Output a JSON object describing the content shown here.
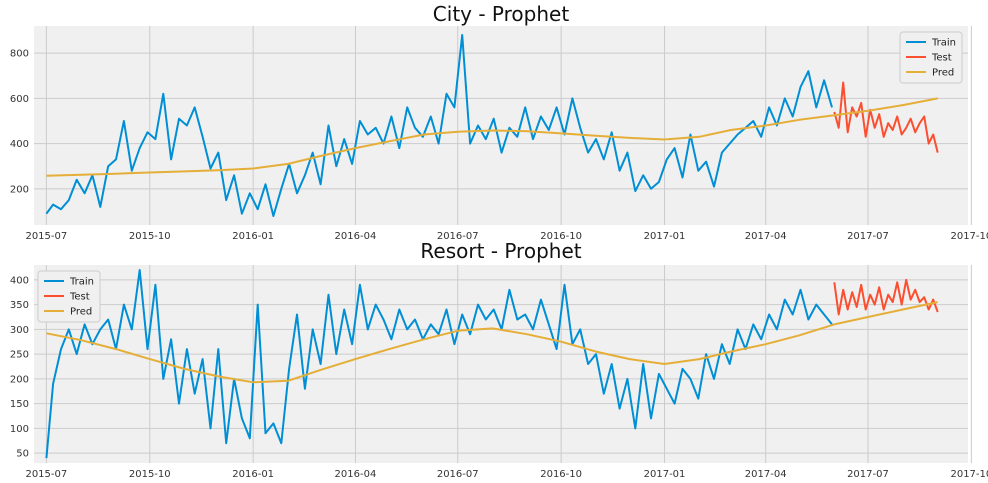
{
  "chart_data": [
    {
      "type": "line",
      "title": "City - Prophet",
      "xlabel": "",
      "ylabel": "",
      "xlim": [
        "2015-06-20",
        "2017-09-28"
      ],
      "ylim": [
        40,
        920
      ],
      "x_ticks": [
        "2015-07",
        "2015-10",
        "2016-01",
        "2016-04",
        "2016-07",
        "2016-10",
        "2017-01",
        "2017-04",
        "2017-07",
        "2017-10"
      ],
      "y_ticks": [
        200,
        400,
        600,
        800
      ],
      "grid": true,
      "legend": "top-right",
      "series": [
        {
          "name": "Train",
          "color": "#008fd5",
          "x": [
            "2015-07-01",
            "2015-07-07",
            "2015-07-14",
            "2015-07-21",
            "2015-07-28",
            "2015-08-04",
            "2015-08-11",
            "2015-08-18",
            "2015-08-25",
            "2015-09-01",
            "2015-09-08",
            "2015-09-15",
            "2015-09-22",
            "2015-09-29",
            "2015-10-06",
            "2015-10-13",
            "2015-10-20",
            "2015-10-27",
            "2015-11-03",
            "2015-11-10",
            "2015-11-17",
            "2015-11-24",
            "2015-12-01",
            "2015-12-08",
            "2015-12-15",
            "2015-12-22",
            "2015-12-29",
            "2016-01-05",
            "2016-01-12",
            "2016-01-19",
            "2016-01-26",
            "2016-02-02",
            "2016-02-09",
            "2016-02-16",
            "2016-02-23",
            "2016-03-01",
            "2016-03-08",
            "2016-03-15",
            "2016-03-22",
            "2016-03-29",
            "2016-04-05",
            "2016-04-12",
            "2016-04-19",
            "2016-04-26",
            "2016-05-03",
            "2016-05-10",
            "2016-05-17",
            "2016-05-24",
            "2016-05-31",
            "2016-06-07",
            "2016-06-14",
            "2016-06-21",
            "2016-06-28",
            "2016-07-05",
            "2016-07-12",
            "2016-07-19",
            "2016-07-26",
            "2016-08-02",
            "2016-08-09",
            "2016-08-16",
            "2016-08-23",
            "2016-08-30",
            "2016-09-06",
            "2016-09-13",
            "2016-09-20",
            "2016-09-27",
            "2016-10-04",
            "2016-10-11",
            "2016-10-18",
            "2016-10-25",
            "2016-11-01",
            "2016-11-08",
            "2016-11-15",
            "2016-11-22",
            "2016-11-29",
            "2016-12-06",
            "2016-12-13",
            "2016-12-20",
            "2016-12-27",
            "2017-01-03",
            "2017-01-10",
            "2017-01-17",
            "2017-01-24",
            "2017-01-31",
            "2017-02-07",
            "2017-02-14",
            "2017-02-21",
            "2017-02-28",
            "2017-03-07",
            "2017-03-14",
            "2017-03-21",
            "2017-03-28",
            "2017-04-04",
            "2017-04-11",
            "2017-04-18",
            "2017-04-25",
            "2017-05-02",
            "2017-05-09",
            "2017-05-16",
            "2017-05-23",
            "2017-05-30"
          ],
          "values": [
            90,
            130,
            110,
            150,
            240,
            180,
            260,
            120,
            300,
            330,
            500,
            280,
            380,
            450,
            420,
            620,
            330,
            510,
            480,
            560,
            430,
            290,
            360,
            150,
            260,
            90,
            180,
            110,
            220,
            80,
            200,
            310,
            180,
            260,
            360,
            220,
            480,
            300,
            420,
            310,
            500,
            440,
            470,
            400,
            520,
            380,
            560,
            470,
            430,
            520,
            400,
            620,
            560,
            880,
            400,
            480,
            420,
            510,
            360,
            470,
            430,
            560,
            420,
            520,
            460,
            560,
            440,
            600,
            470,
            360,
            420,
            330,
            450,
            280,
            360,
            190,
            260,
            200,
            230,
            330,
            380,
            250,
            440,
            280,
            320,
            210,
            360,
            400,
            440,
            470,
            500,
            430,
            560,
            480,
            600,
            520,
            650,
            720,
            560,
            680,
            560
          ]
        },
        {
          "name": "Test",
          "color": "#fc4f30",
          "x": [
            "2017-06-01",
            "2017-06-05",
            "2017-06-09",
            "2017-06-13",
            "2017-06-17",
            "2017-06-21",
            "2017-06-25",
            "2017-06-29",
            "2017-07-03",
            "2017-07-07",
            "2017-07-11",
            "2017-07-15",
            "2017-07-19",
            "2017-07-23",
            "2017-07-27",
            "2017-07-31",
            "2017-08-04",
            "2017-08-08",
            "2017-08-12",
            "2017-08-16",
            "2017-08-20",
            "2017-08-24",
            "2017-08-28",
            "2017-09-01"
          ],
          "values": [
            540,
            470,
            670,
            450,
            560,
            520,
            580,
            430,
            550,
            470,
            530,
            430,
            490,
            460,
            520,
            440,
            470,
            510,
            450,
            490,
            520,
            400,
            440,
            360
          ]
        },
        {
          "name": "Pred",
          "color": "#e5ae38",
          "x": [
            "2015-07-01",
            "2015-08-01",
            "2015-09-01",
            "2015-10-01",
            "2015-11-01",
            "2015-12-01",
            "2016-01-01",
            "2016-02-01",
            "2016-03-01",
            "2016-04-01",
            "2016-05-01",
            "2016-06-01",
            "2016-07-01",
            "2016-08-01",
            "2016-09-01",
            "2016-10-01",
            "2016-11-01",
            "2016-12-01",
            "2017-01-01",
            "2017-02-01",
            "2017-03-01",
            "2017-04-01",
            "2017-05-01",
            "2017-06-01",
            "2017-07-01",
            "2017-08-01",
            "2017-09-01"
          ],
          "values": [
            258,
            262,
            267,
            272,
            277,
            282,
            290,
            310,
            345,
            380,
            410,
            440,
            452,
            458,
            455,
            445,
            435,
            425,
            418,
            430,
            460,
            480,
            505,
            525,
            545,
            570,
            600
          ]
        }
      ]
    },
    {
      "type": "line",
      "title": "Resort - Prophet",
      "xlabel": "",
      "ylabel": "",
      "xlim": [
        "2015-06-20",
        "2017-09-28"
      ],
      "ylim": [
        30,
        430
      ],
      "x_ticks": [
        "2015-07",
        "2015-10",
        "2016-01",
        "2016-04",
        "2016-07",
        "2016-10",
        "2017-01",
        "2017-04",
        "2017-07",
        "2017-10"
      ],
      "y_ticks": [
        50,
        100,
        150,
        200,
        250,
        300,
        350,
        400
      ],
      "grid": true,
      "legend": "top-left",
      "series": [
        {
          "name": "Train",
          "color": "#008fd5",
          "x": [
            "2015-07-01",
            "2015-07-07",
            "2015-07-14",
            "2015-07-21",
            "2015-07-28",
            "2015-08-04",
            "2015-08-11",
            "2015-08-18",
            "2015-08-25",
            "2015-09-01",
            "2015-09-08",
            "2015-09-15",
            "2015-09-22",
            "2015-09-29",
            "2015-10-06",
            "2015-10-13",
            "2015-10-20",
            "2015-10-27",
            "2015-11-03",
            "2015-11-10",
            "2015-11-17",
            "2015-11-24",
            "2015-12-01",
            "2015-12-08",
            "2015-12-15",
            "2015-12-22",
            "2015-12-29",
            "2016-01-05",
            "2016-01-12",
            "2016-01-19",
            "2016-01-26",
            "2016-02-02",
            "2016-02-09",
            "2016-02-16",
            "2016-02-23",
            "2016-03-01",
            "2016-03-08",
            "2016-03-15",
            "2016-03-22",
            "2016-03-29",
            "2016-04-05",
            "2016-04-12",
            "2016-04-19",
            "2016-04-26",
            "2016-05-03",
            "2016-05-10",
            "2016-05-17",
            "2016-05-24",
            "2016-05-31",
            "2016-06-07",
            "2016-06-14",
            "2016-06-21",
            "2016-06-28",
            "2016-07-05",
            "2016-07-12",
            "2016-07-19",
            "2016-07-26",
            "2016-08-02",
            "2016-08-09",
            "2016-08-16",
            "2016-08-23",
            "2016-08-30",
            "2016-09-06",
            "2016-09-13",
            "2016-09-20",
            "2016-09-27",
            "2016-10-04",
            "2016-10-11",
            "2016-10-18",
            "2016-10-25",
            "2016-11-01",
            "2016-11-08",
            "2016-11-15",
            "2016-11-22",
            "2016-11-29",
            "2016-12-06",
            "2016-12-13",
            "2016-12-20",
            "2016-12-27",
            "2017-01-03",
            "2017-01-10",
            "2017-01-17",
            "2017-01-24",
            "2017-01-31",
            "2017-02-07",
            "2017-02-14",
            "2017-02-21",
            "2017-02-28",
            "2017-03-07",
            "2017-03-14",
            "2017-03-21",
            "2017-03-28",
            "2017-04-04",
            "2017-04-11",
            "2017-04-18",
            "2017-04-25",
            "2017-05-02",
            "2017-05-09",
            "2017-05-16",
            "2017-05-23",
            "2017-05-30"
          ],
          "values": [
            40,
            190,
            260,
            300,
            250,
            310,
            270,
            300,
            320,
            260,
            350,
            300,
            420,
            260,
            390,
            200,
            280,
            150,
            260,
            170,
            240,
            100,
            260,
            70,
            200,
            120,
            80,
            350,
            90,
            110,
            70,
            220,
            330,
            180,
            300,
            230,
            370,
            250,
            340,
            270,
            390,
            300,
            350,
            320,
            280,
            340,
            300,
            320,
            280,
            310,
            290,
            340,
            270,
            330,
            290,
            350,
            320,
            340,
            300,
            380,
            320,
            330,
            300,
            360,
            310,
            260,
            390,
            270,
            300,
            230,
            250,
            170,
            230,
            140,
            200,
            100,
            230,
            120,
            210,
            180,
            150,
            220,
            200,
            160,
            250,
            200,
            270,
            230,
            300,
            260,
            310,
            280,
            330,
            300,
            360,
            330,
            380,
            320,
            350,
            330,
            310
          ]
        },
        {
          "name": "Test",
          "color": "#fc4f30",
          "x": [
            "2017-06-01",
            "2017-06-05",
            "2017-06-09",
            "2017-06-13",
            "2017-06-17",
            "2017-06-21",
            "2017-06-25",
            "2017-06-29",
            "2017-07-03",
            "2017-07-07",
            "2017-07-11",
            "2017-07-15",
            "2017-07-19",
            "2017-07-23",
            "2017-07-27",
            "2017-07-31",
            "2017-08-04",
            "2017-08-08",
            "2017-08-12",
            "2017-08-16",
            "2017-08-20",
            "2017-08-24",
            "2017-08-28",
            "2017-09-01"
          ],
          "values": [
            395,
            330,
            380,
            340,
            375,
            345,
            390,
            340,
            370,
            350,
            385,
            340,
            370,
            355,
            395,
            350,
            400,
            360,
            380,
            355,
            365,
            340,
            360,
            335
          ]
        },
        {
          "name": "Pred",
          "color": "#e5ae38",
          "x": [
            "2015-07-01",
            "2015-08-01",
            "2015-09-01",
            "2015-10-01",
            "2015-11-01",
            "2015-12-01",
            "2016-01-01",
            "2016-02-01",
            "2016-03-01",
            "2016-04-01",
            "2016-05-01",
            "2016-06-01",
            "2016-07-01",
            "2016-08-01",
            "2016-09-01",
            "2016-10-01",
            "2016-11-01",
            "2016-12-01",
            "2017-01-01",
            "2017-02-01",
            "2017-03-01",
            "2017-04-01",
            "2017-05-01",
            "2017-06-01",
            "2017-07-01",
            "2017-08-01",
            "2017-09-01"
          ],
          "values": [
            292,
            278,
            260,
            240,
            220,
            205,
            193,
            196,
            218,
            240,
            260,
            280,
            297,
            302,
            290,
            275,
            255,
            240,
            230,
            240,
            255,
            270,
            288,
            310,
            325,
            340,
            355
          ]
        }
      ]
    }
  ]
}
